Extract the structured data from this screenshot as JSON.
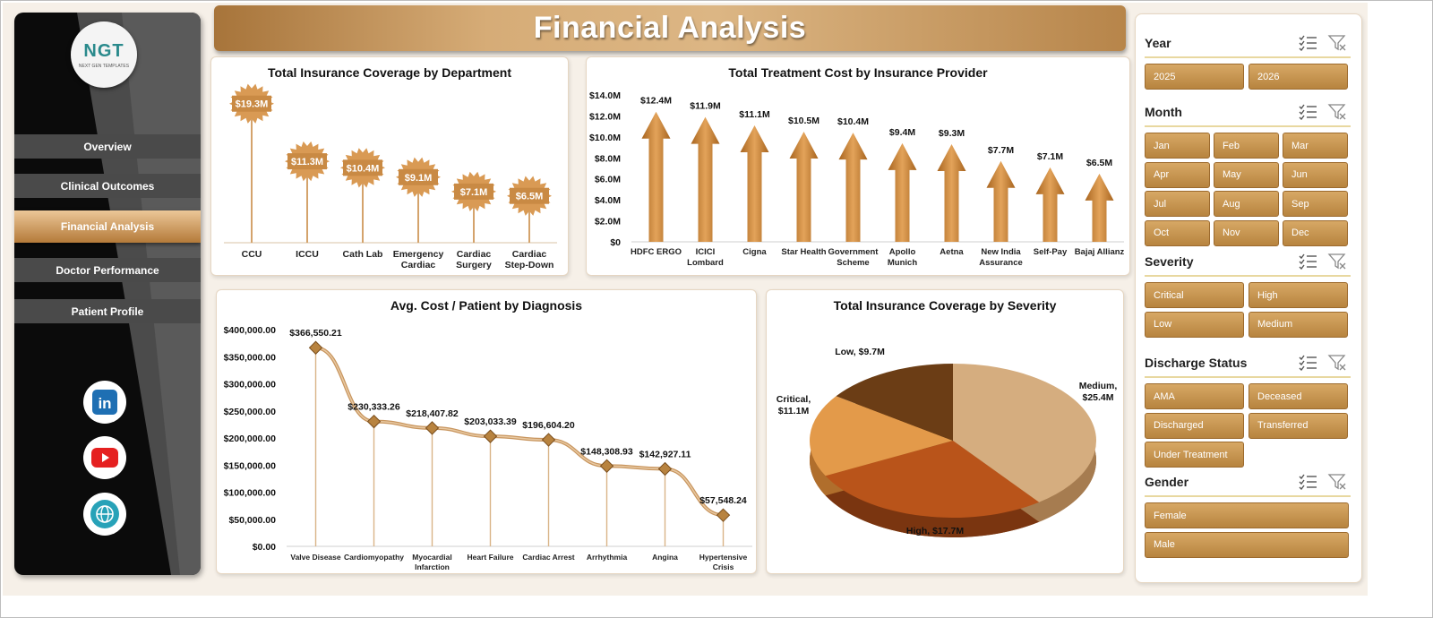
{
  "sidebar": {
    "logo_text": "NGT",
    "logo_sub": "NEXT GEN TEMPLATES",
    "nav": [
      "Overview",
      "Clinical Outcomes",
      "Financial Analysis",
      "Doctor Performance",
      "Patient Profile"
    ],
    "active": "Financial Analysis",
    "social": [
      "linkedin-icon",
      "youtube-icon",
      "globe-icon"
    ]
  },
  "banner": {
    "title": "Financial Analysis"
  },
  "colors": {
    "accent": "#c48a48",
    "dark": "#0b0b0b",
    "nav": "#4a4a4a",
    "slicer": "#c99352"
  },
  "charts": {
    "dept": {
      "title": "Total Insurance  Coverage  by Department"
    },
    "provider": {
      "title": "Total Treatment  Cost by Insurance  Provider"
    },
    "diag": {
      "title": "Avg. Cost  / Patient by Diagnosis"
    },
    "severity": {
      "title": "Total Insurance Coverage by Severity"
    }
  },
  "chart_data": [
    {
      "type": "bar",
      "title": "Total Insurance  Coverage  by Department",
      "categories": [
        [
          "CCU"
        ],
        [
          "ICCU"
        ],
        [
          "Cath Lab"
        ],
        [
          "Emergency",
          "Cardiac"
        ],
        [
          "Cardiac",
          "Surgery"
        ],
        [
          "Cardiac",
          "Step-Down"
        ]
      ],
      "values": [
        19.3,
        11.3,
        10.4,
        9.1,
        7.1,
        6.5
      ],
      "labels": [
        "$19.3M",
        "$11.3M",
        "$10.4M",
        "$9.1M",
        "$7.1M",
        "$6.5M"
      ],
      "ylim": [
        0,
        22
      ]
    },
    {
      "type": "bar",
      "title": "Total Treatment  Cost by Insurance  Provider",
      "categories": [
        [
          "HDFC ERGO"
        ],
        [
          "ICICI",
          "Lombard"
        ],
        [
          "Cigna"
        ],
        [
          "Star Health"
        ],
        [
          "Government",
          "Scheme"
        ],
        [
          "Apollo",
          "Munich"
        ],
        [
          "Aetna"
        ],
        [
          "New India",
          "Assurance"
        ],
        [
          "Self-Pay"
        ],
        [
          "Bajaj Allianz"
        ]
      ],
      "values": [
        12.4,
        11.9,
        11.1,
        10.5,
        10.4,
        9.4,
        9.3,
        7.7,
        7.1,
        6.5
      ],
      "labels": [
        "$12.4M",
        "$11.9M",
        "$11.1M",
        "$10.5M",
        "$10.4M",
        "$9.4M",
        "$9.3M",
        "$7.7M",
        "$7.1M",
        "$6.5M"
      ],
      "yticks": [
        "$0",
        "$2.0M",
        "$4.0M",
        "$6.0M",
        "$8.0M",
        "$10.0M",
        "$12.0M",
        "$14.0M"
      ],
      "ylim": [
        0,
        14
      ]
    },
    {
      "type": "line",
      "title": "Avg. Cost  / Patient by Diagnosis",
      "categories": [
        [
          "Valve Disease"
        ],
        [
          "Cardiomyopathy"
        ],
        [
          "Myocardial",
          "Infarction"
        ],
        [
          "Heart Failure"
        ],
        [
          "Cardiac Arrest"
        ],
        [
          "Arrhythmia"
        ],
        [
          "Angina"
        ],
        [
          "Hypertensive",
          "Crisis"
        ]
      ],
      "values": [
        366550.21,
        230333.26,
        218407.82,
        203033.39,
        196604.2,
        148308.93,
        142927.11,
        57548.24
      ],
      "labels": [
        "$366,550.21",
        "$230,333.26",
        "$218,407.82",
        "$203,033.39",
        "$196,604.20",
        "$148,308.93",
        "$142,927.11",
        "$57,548.24"
      ],
      "yticks": [
        "$0.00",
        "$50,000.00",
        "$100,000.00",
        "$150,000.00",
        "$200,000.00",
        "$250,000.00",
        "$300,000.00",
        "$350,000.00",
        "$400,000.00"
      ],
      "ylim": [
        0,
        400000
      ]
    },
    {
      "type": "pie",
      "title": "Total Insurance Coverage by Severity",
      "slices": [
        {
          "name": "Medium",
          "value": 25.4,
          "label": [
            "Medium,",
            "$25.4M"
          ]
        },
        {
          "name": "High",
          "value": 17.7,
          "label": [
            "High,  $17.7M"
          ]
        },
        {
          "name": "Critical",
          "value": 11.1,
          "label": [
            "Critical,",
            "$11.1M"
          ]
        },
        {
          "name": "Low",
          "value": 9.7,
          "label": [
            "Low, $9.7M"
          ]
        }
      ]
    }
  ],
  "slicers": [
    {
      "title": "Year",
      "items": [
        "2025",
        "2026"
      ]
    },
    {
      "title": "Month",
      "items": [
        "Jan",
        "Feb",
        "Mar",
        "Apr",
        "May",
        "Jun",
        "Jul",
        "Aug",
        "Sep",
        "Oct",
        "Nov",
        "Dec"
      ]
    },
    {
      "title": "Severity",
      "items": [
        "Critical",
        "High",
        "Low",
        "Medium"
      ]
    },
    {
      "title": "Discharge Status",
      "items": [
        "AMA",
        "Deceased",
        "Discharged",
        "Transferred",
        "Under Treatment"
      ]
    },
    {
      "title": "Gender",
      "items": [
        "Female",
        "Male"
      ]
    }
  ]
}
